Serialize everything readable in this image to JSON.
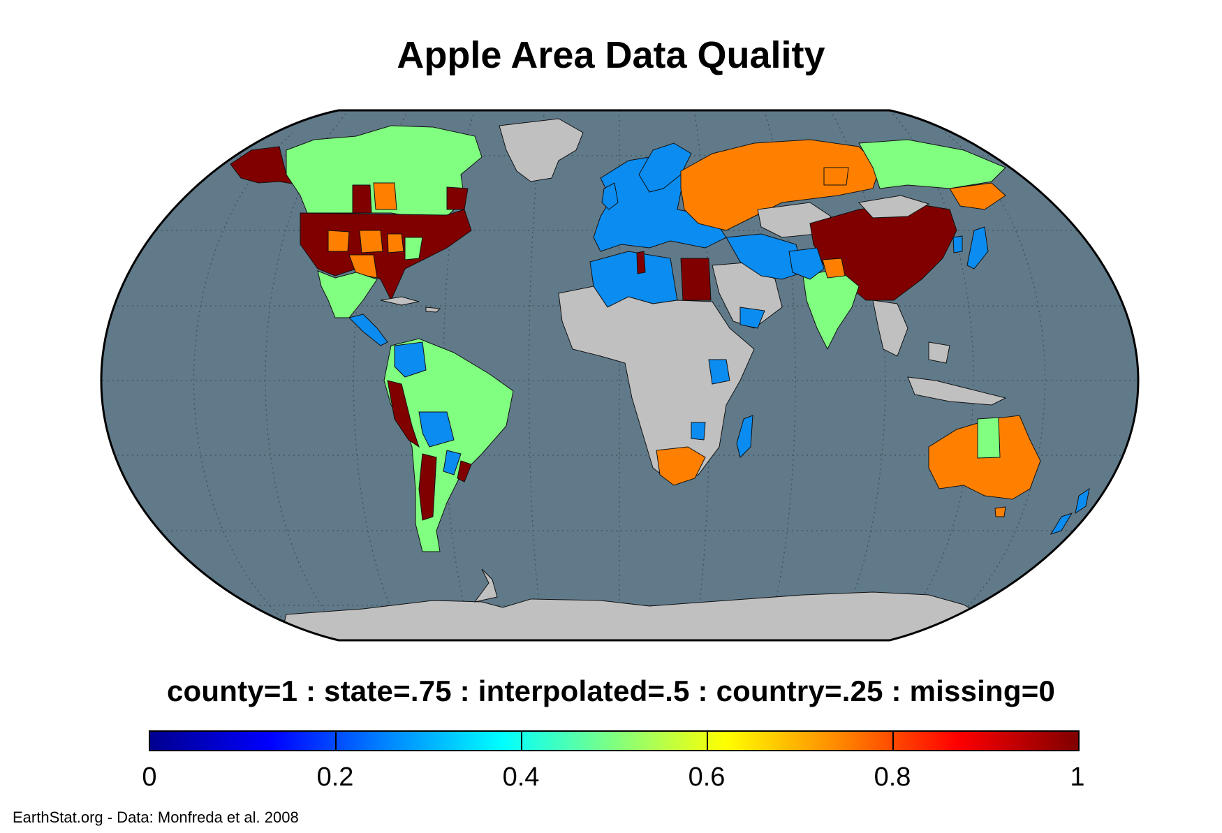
{
  "title": "Apple Area Data Quality",
  "legend": {
    "description": "county=1 : state=.75 : interpolated=.5 : country=.25 : missing=0",
    "ticks": [
      "0",
      "0.2",
      "0.4",
      "0.6",
      "0.8",
      "1"
    ]
  },
  "colors": {
    "ocean": "#607a8a",
    "land_missing": "#c0c0c0",
    "county": "#800000",
    "state": "#ff8000",
    "interpolated": "#80ff80",
    "country": "#0a8cf0",
    "grid": "#3f4f5a",
    "border": "#8c8c8c"
  },
  "credit": "EarthStat.org - Data: Monfreda et al. 2008"
}
